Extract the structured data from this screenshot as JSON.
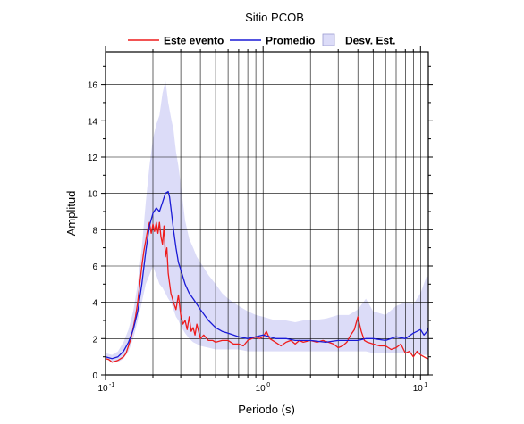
{
  "chart_data": {
    "type": "line",
    "title": "Sitio PCOB",
    "xlabel": "Periodo (s)",
    "ylabel": "Amplitud",
    "xscale": "log",
    "xlim": [
      0.1,
      11.2
    ],
    "ylim": [
      0,
      17.8
    ],
    "grid": true,
    "legend_placement": "top",
    "y_ticks": [
      0,
      2,
      4,
      6,
      8,
      10,
      12,
      14,
      16
    ],
    "x_tick_labels": [
      {
        "value": 0.1,
        "base": "10",
        "exp": "-1"
      },
      {
        "value": 1,
        "base": "10",
        "exp": "0"
      },
      {
        "value": 10,
        "base": "10",
        "exp": "1"
      }
    ],
    "legend": [
      {
        "label": "Este evento",
        "kind": "line",
        "color": "#ee1c1c"
      },
      {
        "label": "Promedio",
        "kind": "line",
        "color": "#1a1ad6"
      },
      {
        "label": "Desv. Est.",
        "kind": "band",
        "color": "#dcdcf8"
      }
    ],
    "band": {
      "name": "Desv. Est.",
      "color": "#dcdcf8",
      "x": [
        0.1,
        0.11,
        0.12,
        0.13,
        0.14,
        0.15,
        0.16,
        0.17,
        0.18,
        0.19,
        0.2,
        0.21,
        0.22,
        0.23,
        0.24,
        0.25,
        0.26,
        0.27,
        0.28,
        0.29,
        0.3,
        0.32,
        0.34,
        0.36,
        0.38,
        0.4,
        0.45,
        0.5,
        0.55,
        0.6,
        0.7,
        0.8,
        0.9,
        1.0,
        1.2,
        1.4,
        1.6,
        1.8,
        2.0,
        2.5,
        3.0,
        3.5,
        4.0,
        4.5,
        5.0,
        6.0,
        7.0,
        8.0,
        9.0,
        10.0,
        11.0,
        11.2
      ],
      "upper": [
        1.2,
        1.1,
        1.3,
        1.8,
        2.5,
        3.5,
        5.0,
        7.0,
        9.5,
        11.5,
        13.0,
        13.8,
        14.3,
        15.5,
        16.2,
        15.0,
        14.2,
        13.5,
        12.3,
        11.5,
        10.5,
        8.5,
        7.5,
        7.0,
        6.5,
        6.2,
        5.5,
        5.0,
        4.5,
        4.2,
        3.8,
        3.5,
        3.3,
        3.2,
        3.0,
        3.0,
        2.9,
        3.0,
        3.0,
        3.1,
        3.3,
        3.3,
        3.6,
        4.2,
        3.5,
        3.3,
        3.8,
        4.0,
        3.9,
        4.5,
        5.5,
        5.3
      ],
      "lower": [
        0.9,
        0.7,
        0.7,
        0.9,
        1.3,
        2.0,
        3.0,
        4.0,
        5.0,
        5.5,
        6.0,
        5.5,
        5.0,
        4.8,
        4.5,
        4.2,
        4.0,
        3.6,
        3.2,
        3.0,
        2.7,
        2.3,
        2.0,
        1.8,
        1.7,
        1.6,
        1.5,
        1.4,
        1.4,
        1.4,
        1.4,
        1.3,
        1.3,
        1.3,
        1.3,
        1.3,
        1.3,
        1.3,
        1.3,
        1.3,
        1.3,
        1.3,
        1.3,
        1.3,
        1.2,
        1.2,
        1.2,
        1.2,
        1.2,
        1.1,
        1.1,
        1.1
      ]
    },
    "series": [
      {
        "name": "Este evento",
        "color": "#ee1c1c",
        "x": [
          0.1,
          0.105,
          0.11,
          0.115,
          0.12,
          0.125,
          0.13,
          0.135,
          0.14,
          0.145,
          0.15,
          0.155,
          0.16,
          0.165,
          0.17,
          0.175,
          0.18,
          0.185,
          0.19,
          0.195,
          0.2,
          0.205,
          0.21,
          0.215,
          0.22,
          0.225,
          0.23,
          0.235,
          0.24,
          0.245,
          0.25,
          0.26,
          0.27,
          0.28,
          0.29,
          0.3,
          0.31,
          0.32,
          0.33,
          0.34,
          0.35,
          0.36,
          0.37,
          0.38,
          0.4,
          0.42,
          0.45,
          0.48,
          0.5,
          0.55,
          0.6,
          0.65,
          0.7,
          0.75,
          0.8,
          0.85,
          0.9,
          0.95,
          1.0,
          1.05,
          1.1,
          1.2,
          1.3,
          1.4,
          1.5,
          1.6,
          1.7,
          1.8,
          2.0,
          2.2,
          2.4,
          2.6,
          2.8,
          3.0,
          3.2,
          3.4,
          3.6,
          3.8,
          4.0,
          4.2,
          4.4,
          4.6,
          5.0,
          5.5,
          6.0,
          6.5,
          7.0,
          7.5,
          8.0,
          8.5,
          9.0,
          9.5,
          10.0,
          10.5,
          11.0,
          11.2
        ],
        "y": [
          0.9,
          0.85,
          0.7,
          0.75,
          0.8,
          0.9,
          1.0,
          1.2,
          1.6,
          2.0,
          2.6,
          3.2,
          4.0,
          5.0,
          6.0,
          6.8,
          7.4,
          8.0,
          8.4,
          7.8,
          8.3,
          7.9,
          8.4,
          7.8,
          8.4,
          7.6,
          7.2,
          8.2,
          6.5,
          7.0,
          5.6,
          4.5,
          4.0,
          3.6,
          4.4,
          3.3,
          2.8,
          3.0,
          2.5,
          3.2,
          2.4,
          2.6,
          2.2,
          2.8,
          2.0,
          2.2,
          1.9,
          1.9,
          1.8,
          1.9,
          1.9,
          1.7,
          1.7,
          1.6,
          1.9,
          2.0,
          2.1,
          2.0,
          2.1,
          2.4,
          2.0,
          1.8,
          1.6,
          1.8,
          1.9,
          1.7,
          1.9,
          1.8,
          1.9,
          1.8,
          1.9,
          1.8,
          1.7,
          1.5,
          1.6,
          1.8,
          2.2,
          2.5,
          3.2,
          2.4,
          1.9,
          1.8,
          1.7,
          1.6,
          1.6,
          1.4,
          1.5,
          1.7,
          1.2,
          1.3,
          1.0,
          1.3,
          1.1,
          1.0,
          0.9,
          0.9
        ]
      },
      {
        "name": "Promedio",
        "color": "#1a1ad6",
        "x": [
          0.1,
          0.11,
          0.12,
          0.13,
          0.14,
          0.15,
          0.16,
          0.17,
          0.18,
          0.19,
          0.2,
          0.21,
          0.22,
          0.23,
          0.24,
          0.25,
          0.255,
          0.26,
          0.27,
          0.28,
          0.29,
          0.3,
          0.32,
          0.34,
          0.36,
          0.38,
          0.4,
          0.45,
          0.5,
          0.55,
          0.6,
          0.7,
          0.8,
          0.9,
          1.0,
          1.2,
          1.4,
          1.6,
          1.8,
          2.0,
          2.5,
          3.0,
          3.5,
          4.0,
          4.5,
          5.0,
          6.0,
          7.0,
          8.0,
          9.0,
          10.0,
          10.5,
          11.0,
          11.2
        ],
        "y": [
          1.0,
          0.9,
          1.0,
          1.3,
          1.8,
          2.5,
          3.5,
          5.0,
          6.8,
          8.2,
          8.9,
          9.2,
          9.0,
          9.5,
          10.0,
          10.1,
          9.8,
          9.2,
          8.0,
          7.0,
          6.2,
          5.8,
          5.0,
          4.5,
          4.2,
          3.9,
          3.6,
          3.0,
          2.6,
          2.4,
          2.3,
          2.1,
          2.0,
          2.1,
          2.2,
          2.0,
          2.0,
          1.9,
          1.9,
          1.9,
          1.8,
          1.9,
          1.9,
          1.9,
          2.0,
          2.0,
          1.9,
          2.1,
          2.0,
          2.3,
          2.5,
          2.2,
          2.4,
          2.6
        ]
      }
    ]
  }
}
